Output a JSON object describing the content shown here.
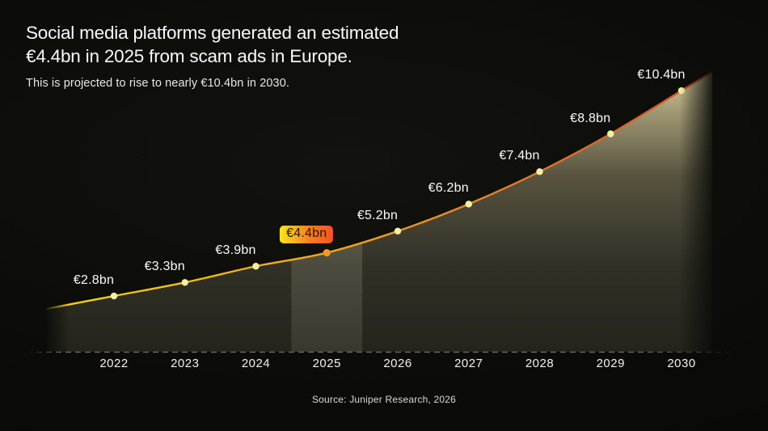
{
  "header": {
    "title_line1": "Social media platforms generated an estimated",
    "title_line2": "€4.4bn in 2025 from scam ads in Europe.",
    "subtitle": "This is projected to rise to nearly €10.4bn in 2030."
  },
  "footer": {
    "source": "Source: Juniper Research, 2026"
  },
  "chart_data": {
    "type": "area",
    "x": [
      2022,
      2023,
      2024,
      2025,
      2026,
      2027,
      2028,
      2029,
      2030
    ],
    "values": [
      2.8,
      3.3,
      3.9,
      4.4,
      5.2,
      6.2,
      7.4,
      8.8,
      10.4
    ],
    "point_labels": [
      "€2.8bn",
      "€3.3bn",
      "€3.9bn",
      "€4.4bn",
      "€5.2bn",
      "€6.2bn",
      "€7.4bn",
      "€8.8bn",
      "€10.4bn"
    ],
    "unit": "€bn",
    "ylim": [
      0,
      11.2
    ],
    "grid": "dashed-baseline-only",
    "legend": "none",
    "highlight": {
      "year": 2025,
      "label": "€4.4bn"
    },
    "colors": {
      "background": "#0a0a08",
      "text": "#fafaf8",
      "line_start": "#f4d51d",
      "line_mid": "#f0a226",
      "line_late": "#e4742c",
      "line_end": "#d14e28",
      "dot": "#f5f0a3",
      "highlight_dot": "#f09a24",
      "area_top": "#d9d0a2",
      "area_upper": "#a49c76",
      "area_mid": "#57533f",
      "area_low": "#303026",
      "area_bottom": "#24241c",
      "band_tint": "#f1ecce",
      "badge_gradient_start": "#fbe71b",
      "badge_gradient_mid": "#f97f22",
      "badge_gradient_end": "#f4512a",
      "badge_text": "#231a02",
      "baseline_dash": "#6f6d66"
    }
  }
}
